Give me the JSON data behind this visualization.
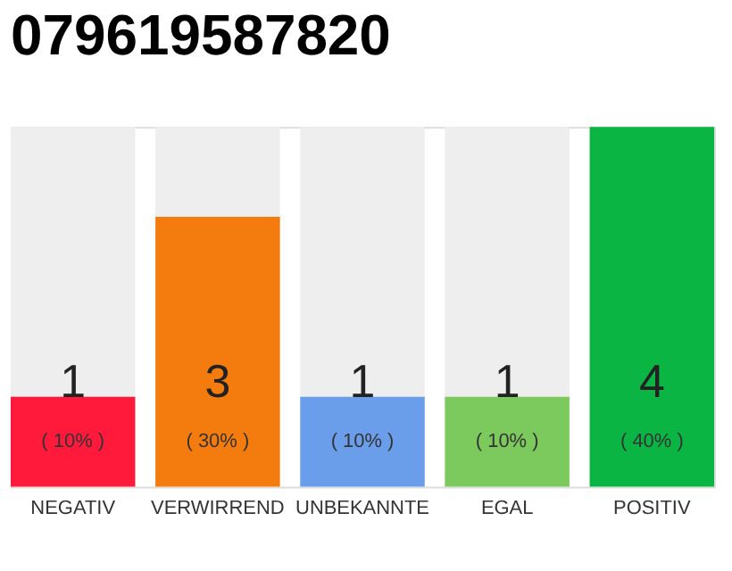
{
  "chart_data": {
    "type": "bar",
    "title": "079619587820",
    "categories": [
      "NEGATIV",
      "VERWIRREND",
      "UNBEKANNTE",
      "EGAL",
      "POSITIV"
    ],
    "values": [
      1,
      3,
      1,
      1,
      4
    ],
    "colors": [
      "#ff1a3c",
      "#f47c0e",
      "#6a9eeb",
      "#7cc95e",
      "#0bb543"
    ],
    "ylim": [
      0,
      4
    ],
    "tick_labels": "x",
    "grid": false,
    "legend": false,
    "data_labels": true,
    "annotations": [
      "( 10% )",
      "( 30% )",
      "( 10% )",
      "( 10% )",
      "( 40% )"
    ]
  }
}
